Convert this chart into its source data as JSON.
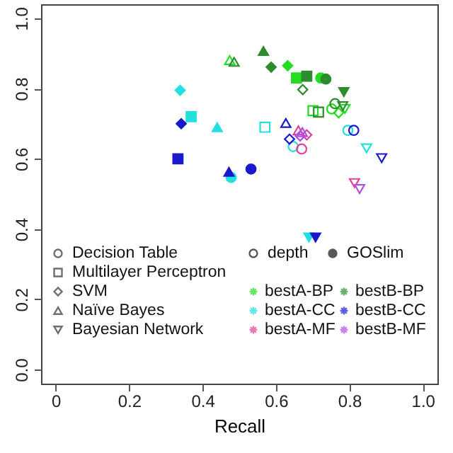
{
  "chart_data": {
    "type": "scatter",
    "xlabel": "Recall",
    "xlim": [
      -0.04,
      1.04
    ],
    "ylim": [
      -0.04,
      1.04
    ],
    "xticks": [
      0,
      {
        "value": 0.2,
        "label": "0.2"
      },
      {
        "value": 0.4,
        "label": "0.4"
      },
      {
        "value": 0.6,
        "label": "0.6"
      },
      {
        "value": 0.8,
        "label": "0.8"
      },
      {
        "value": 1,
        "label": "1.0"
      }
    ],
    "yticks": [
      {
        "value": 0,
        "label": "0.0"
      },
      {
        "value": 0.2,
        "label": "0.2"
      },
      {
        "value": 0.4,
        "label": "0.4"
      },
      {
        "value": 0.6,
        "label": "0.6"
      },
      {
        "value": 0.8,
        "label": "0.8"
      },
      {
        "value": 1,
        "label": "1.0"
      }
    ],
    "grid": false,
    "legend": "bottom",
    "series": [
      {
        "name": "Decision Table",
        "color": "#333333",
        "marker": "circle-open"
      },
      {
        "name": "Multilayer Perceptron",
        "color": "#333333",
        "marker": "square-open"
      },
      {
        "name": "SVM",
        "color": "#333333",
        "marker": "diamond-open"
      },
      {
        "name": "Naïve Bayes",
        "color": "#333333",
        "marker": "triangle-open"
      },
      {
        "name": "Bayesian Network",
        "color": "#333333",
        "marker": "triangle-down-open"
      },
      {
        "name": "depth",
        "color": "#111111",
        "marker": "circle-open"
      },
      {
        "name": "GOSlim",
        "color": "#111111",
        "marker": "circle"
      },
      {
        "name": "bestA-BP",
        "color": "#22dd22",
        "x": [
          0.632,
          0.656,
          0.722,
          0.474,
          0.701,
          0.752,
          0.771,
          0.788
        ],
        "values": [
          0.865,
          0.83,
          0.83,
          0.881,
          0.737,
          0.742,
          0.731,
          0.742
        ],
        "marker": [
          "diamond",
          "square",
          "circle",
          "triangle-open",
          "square-open",
          "circle-open",
          "diamond-open",
          "triangle-down-open"
        ]
      },
      {
        "name": "bestA-CC",
        "color": "#22e0e0",
        "x": [
          0.339,
          0.369,
          0.44,
          0.478,
          0.69,
          0.57,
          0.647,
          0.796,
          0.847
        ],
        "values": [
          0.795,
          0.72,
          0.69,
          0.547,
          0.376,
          0.69,
          0.635,
          0.681,
          0.63
        ],
        "marker": [
          "diamond",
          "square",
          "triangle",
          "circle",
          "triangle-down",
          "square-open",
          "circle-open",
          "circle-open",
          "triangle-down-open"
        ]
      },
      {
        "name": "bestA-MF",
        "color": "#e0409a",
        "x": [
          0.661,
          0.684,
          0.67,
          0.814
        ],
        "values": [
          0.681,
          0.668,
          0.628,
          0.531
        ],
        "marker": [
          "triangle-open",
          "diamond-open",
          "circle-open",
          "triangle-down-open"
        ]
      },
      {
        "name": "bestB-BP",
        "color": "#2e8b2e",
        "x": [
          0.566,
          0.587,
          0.684,
          0.736,
          0.785,
          0.486,
          0.673,
          0.716,
          0.761,
          0.782
        ],
        "values": [
          0.907,
          0.861,
          0.835,
          0.827,
          0.79,
          0.876,
          0.797,
          0.733,
          0.757,
          0.75
        ],
        "marker": [
          "triangle",
          "diamond",
          "square",
          "circle",
          "triangle-down",
          "triangle-open",
          "diamond-open",
          "square-open",
          "circle-open",
          "triangle-down-open"
        ]
      },
      {
        "name": "bestB-CC",
        "color": "#1a1acc",
        "x": [
          0.342,
          0.333,
          0.472,
          0.532,
          0.708,
          0.627,
          0.637,
          0.812,
          0.888
        ],
        "values": [
          0.7,
          0.6,
          0.563,
          0.571,
          0.376,
          0.702,
          0.656,
          0.681,
          0.602
        ],
        "marker": [
          "diamond",
          "square",
          "triangle",
          "circle",
          "triangle-down",
          "triangle-open",
          "diamond-open",
          "circle-open",
          "triangle-down-open"
        ]
      },
      {
        "name": "bestB-MF",
        "color": "#b050e0",
        "x": [
          0.672,
          0.666,
          0.828
        ],
        "values": [
          0.676,
          0.665,
          0.514
        ],
        "marker": [
          "triangle-open",
          "diamond-open",
          "triangle-down-open"
        ]
      }
    ]
  }
}
